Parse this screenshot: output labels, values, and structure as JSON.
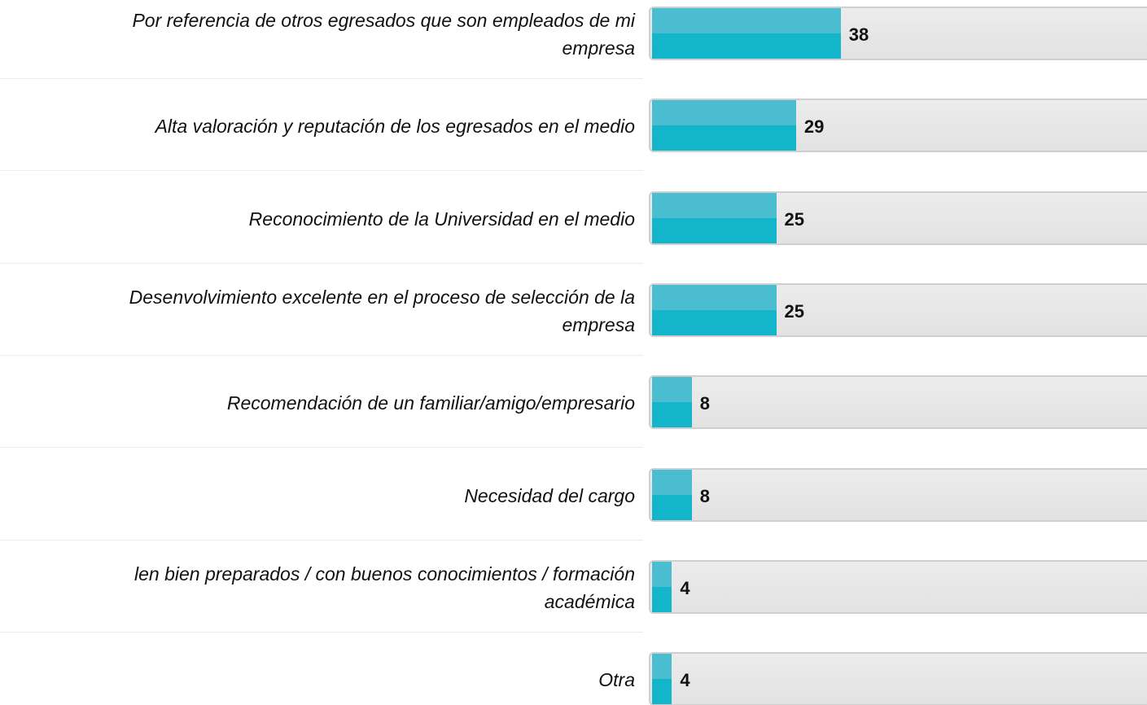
{
  "chart_data": {
    "type": "bar",
    "orientation": "horizontal",
    "categories": [
      "Por referencia de otros egresados que son empleados de mi\nempresa",
      "Alta valoración y reputación de los egresados en el medio",
      "Reconocimiento de la Universidad en el medio",
      "Desenvolvimiento excelente en el proceso de selección de la\nempresa",
      "Recomendación de un familiar/amigo/empresario",
      "Necesidad del cargo",
      "len bien preparados / con buenos conocimientos / formación\nacadémica",
      "Otra"
    ],
    "values": [
      38,
      29,
      25,
      25,
      8,
      8,
      4,
      4
    ],
    "color": "#13b5cb",
    "highlight": "#4bbdd0",
    "track_color": "#e6e6e6",
    "xlim": [
      0,
      100
    ]
  }
}
